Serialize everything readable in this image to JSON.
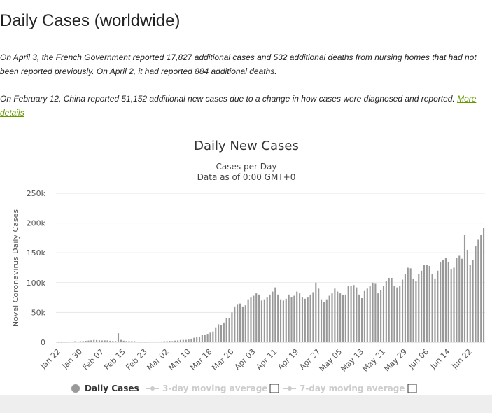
{
  "page": {
    "title": "Daily Cases (worldwide)",
    "note1": "On April 3, the French Government reported 17,827 additional cases and 532 additional deaths from nursing homes that had not been reported previously. On April 2, it had reported 884 additional deaths.",
    "note2_text": "On February 12, China reported 51,152 additional new cases due to a change in how cases were diagnosed and reported. ",
    "note2_link": "More details"
  },
  "chart_data": {
    "type": "bar",
    "title": "Daily New Cases",
    "subtitle": "Cases per Day",
    "subtitle2": "Data as of 0:00 GMT+0",
    "ylabel": "Novel Coronavirus Daily Cases",
    "xlabel": "",
    "ylim": [
      0,
      250000
    ],
    "yticks": [
      0,
      50000,
      100000,
      150000,
      200000,
      250000
    ],
    "ytick_labels": [
      "0",
      "50k",
      "100k",
      "150k",
      "200k",
      "250k"
    ],
    "xtick_labels": [
      "Jan 22",
      "Jan 30",
      "Feb 07",
      "Feb 15",
      "Feb 23",
      "Mar 02",
      "Mar 10",
      "Mar 18",
      "Mar 26",
      "Apr 03",
      "Apr 11",
      "Apr 19",
      "Apr 27",
      "May 05",
      "May 13",
      "May 21",
      "May 29",
      "Jun 06",
      "Jun 14",
      "Jun 22"
    ],
    "xtick_every": 8,
    "grid": true,
    "bar_color": "#999999",
    "categories_start": "Jan 22",
    "series": [
      {
        "name": "Daily Cases",
        "values": [
          100,
          100,
          250,
          500,
          700,
          800,
          1700,
          1200,
          1800,
          2000,
          2300,
          2800,
          3200,
          3900,
          3700,
          3200,
          2900,
          3100,
          3000,
          2500,
          2200,
          2000,
          15100,
          4000,
          2600,
          2000,
          2000,
          2000,
          1800,
          800,
          500,
          600,
          400,
          600,
          800,
          700,
          900,
          1200,
          1400,
          1800,
          1900,
          2200,
          1800,
          2700,
          3000,
          3800,
          4000,
          4000,
          4500,
          6000,
          7500,
          9000,
          9000,
          12000,
          13000,
          14000,
          16000,
          18000,
          25000,
          30000,
          29000,
          33000,
          40000,
          41000,
          50000,
          60000,
          63000,
          65000,
          60000,
          62000,
          72000,
          75000,
          78000,
          82000,
          80000,
          70000,
          72000,
          75000,
          80000,
          85000,
          92000,
          80000,
          72000,
          70000,
          73000,
          80000,
          76000,
          78000,
          85000,
          82000,
          75000,
          73000,
          75000,
          80000,
          84000,
          100000,
          90000,
          72000,
          68000,
          72000,
          78000,
          82000,
          90000,
          85000,
          82000,
          79000,
          80000,
          95000,
          95000,
          96000,
          92000,
          80000,
          74000,
          86000,
          90000,
          95000,
          100000,
          98000,
          82000,
          88000,
          95000,
          103000,
          108000,
          108000,
          95000,
          92000,
          95000,
          105000,
          115000,
          125000,
          124000,
          106000,
          103000,
          115000,
          120000,
          130000,
          130000,
          128000,
          115000,
          107000,
          120000,
          135000,
          138000,
          142000,
          135000,
          122000,
          125000,
          142000,
          145000,
          140000,
          180000,
          155000,
          130000,
          138000,
          162000,
          172000,
          180000,
          192000
        ]
      }
    ],
    "legend": {
      "placement": "bottom",
      "items": [
        {
          "label": "Daily Cases",
          "active": true
        },
        {
          "label": "3-day moving average",
          "active": false
        },
        {
          "label": "7-day moving average",
          "active": false
        }
      ]
    }
  }
}
